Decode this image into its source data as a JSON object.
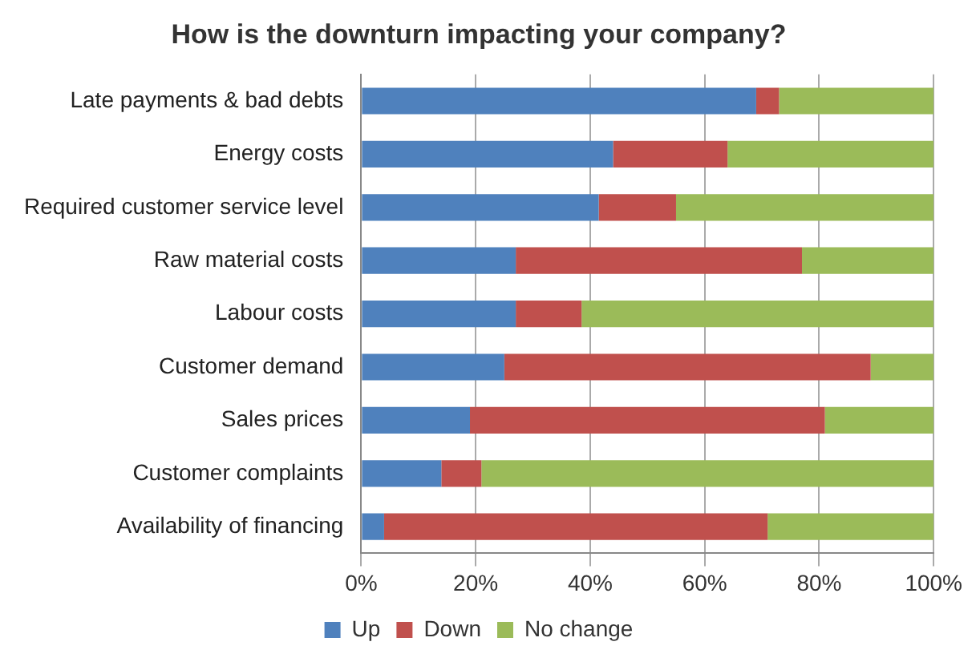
{
  "chart_data": {
    "type": "bar",
    "orientation": "horizontal",
    "stacked": true,
    "title": "How is the downturn impacting your company?",
    "categories": [
      "Late payments & bad debts",
      "Energy costs",
      "Required customer service level",
      "Raw material costs",
      "Labour costs",
      "Customer demand",
      "Sales prices",
      "Customer complaints",
      "Availability of financing"
    ],
    "series": [
      {
        "name": "Up",
        "color": "#4f81bd",
        "values": [
          69,
          44,
          41.5,
          27,
          27,
          25,
          19,
          14,
          4
        ]
      },
      {
        "name": "Down",
        "color": "#c0504d",
        "values": [
          4,
          20,
          13.5,
          50,
          11.5,
          64,
          62,
          7,
          67
        ]
      },
      {
        "name": "No change",
        "color": "#9bbb59",
        "values": [
          27,
          36,
          45,
          23,
          61.5,
          11,
          19,
          79,
          29
        ]
      }
    ],
    "xlim": [
      0,
      100
    ],
    "xticks": [
      {
        "value": 0,
        "label": "0%"
      },
      {
        "value": 20,
        "label": "20%"
      },
      {
        "value": 40,
        "label": "40%"
      },
      {
        "value": 60,
        "label": "60%"
      },
      {
        "value": 80,
        "label": "80%"
      },
      {
        "value": 100,
        "label": "100%"
      }
    ],
    "grid": "x",
    "legend": "bottom"
  }
}
